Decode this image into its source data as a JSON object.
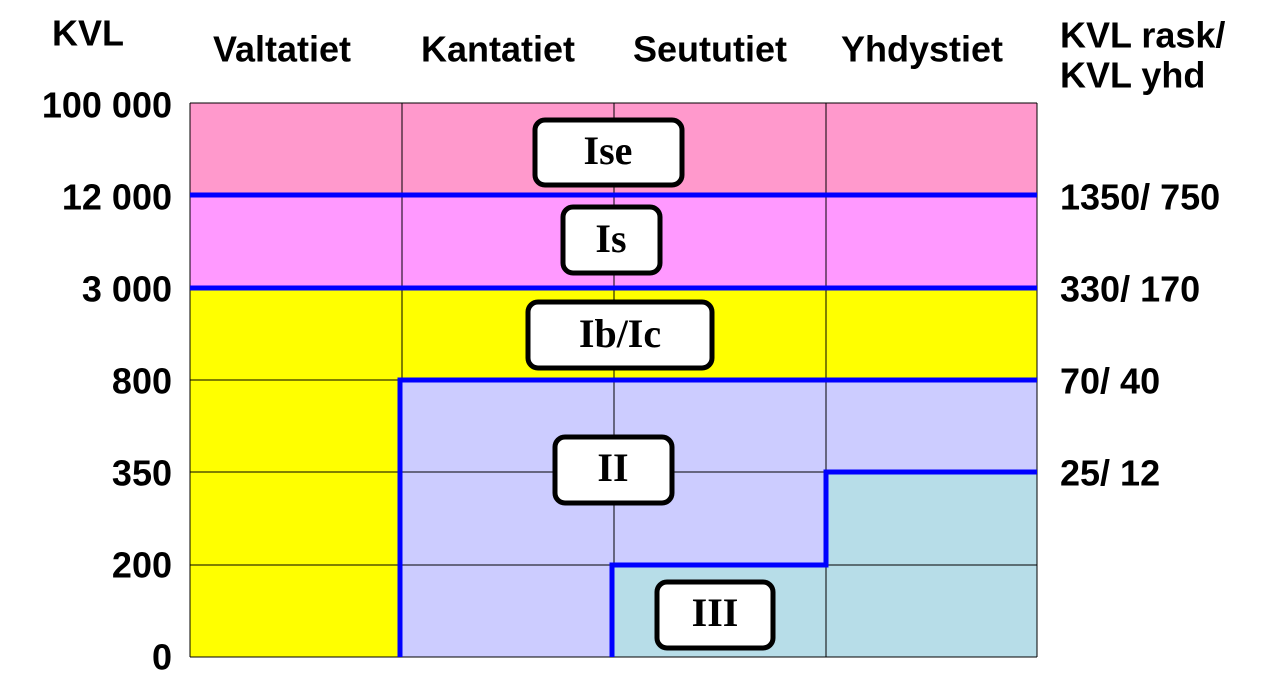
{
  "header": {
    "kvl": "KVL",
    "columns": [
      "Valtatiet",
      "Kantatiet",
      "Seututiet",
      "Yhdystiet"
    ],
    "right_header": [
      "KVL rask/",
      "KVL yhd"
    ]
  },
  "left_labels": [
    "100 000",
    "12 000",
    "3 000",
    "800",
    "350",
    "200",
    "0"
  ],
  "right_labels": [
    "1350/ 750",
    "330/ 170",
    "70/ 40",
    "25/ 12"
  ],
  "zones": [
    "Ise",
    "Is",
    "Ib/Ic",
    "II",
    "III"
  ]
}
